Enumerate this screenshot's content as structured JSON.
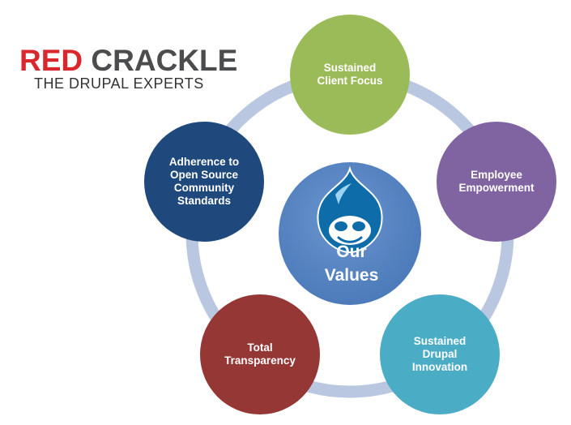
{
  "logo": {
    "word_red": "RED",
    "word_grey": "CRACKLE",
    "tagline": "THE DRUPAL EXPERTS"
  },
  "center": {
    "label": "Our\nValues",
    "icon": "drupal-drop-icon",
    "color": "#4f81bd"
  },
  "nodes": [
    {
      "label": "Sustained\nClient Focus",
      "color": "#9bbb59"
    },
    {
      "label": "Employee\nEmpowerment",
      "color": "#8064a2"
    },
    {
      "label": "Sustained\nDrupal\nInnovation",
      "color": "#4bacc6"
    },
    {
      "label": "Total\nTransparency",
      "color": "#953735"
    },
    {
      "label": "Adherence to\nOpen Source\nCommunity\nStandards",
      "color": "#1f497d"
    }
  ],
  "ring_color": "#b9c7e0"
}
